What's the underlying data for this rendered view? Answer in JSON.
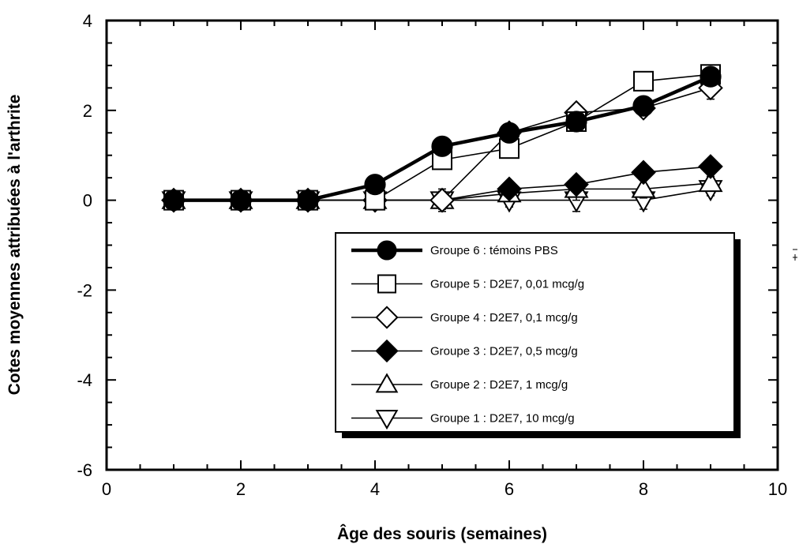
{
  "chart_data": {
    "type": "line",
    "xlabel": "Âge des souris (semaines)",
    "ylabel": "Cotes moyennes attribuées à l'arthrite",
    "xlim": [
      0,
      10
    ],
    "ylim": [
      -6,
      4
    ],
    "xticks": [
      0,
      2,
      4,
      6,
      8,
      10
    ],
    "yticks": [
      -6,
      -4,
      -2,
      0,
      2,
      4
    ],
    "grid": false,
    "legend_position": "bottom-right",
    "x": [
      1,
      2,
      3,
      4,
      5,
      6,
      7,
      8,
      9
    ],
    "series": [
      {
        "name": "Groupe 6 : témoins PBS",
        "marker": "circle-filled",
        "line": "thick",
        "values": [
          0,
          0,
          0,
          0.35,
          1.2,
          1.5,
          1.75,
          2.1,
          2.75
        ],
        "errors": [
          0,
          0,
          0,
          0.05,
          0.1,
          0.1,
          0.1,
          0.2,
          0.15
        ]
      },
      {
        "name": "Groupe 5 : D2E7, 0,01 mcg/g",
        "marker": "square-open",
        "line": "thin",
        "values": [
          0,
          0,
          0,
          0,
          0.9,
          1.15,
          1.75,
          2.65,
          2.8
        ],
        "errors": [
          0,
          0,
          0,
          0,
          0.1,
          0.15,
          0.1,
          0.15,
          0.15
        ]
      },
      {
        "name": "Groupe 4 : D2E7, 0,1 mcg/g",
        "marker": "diamond-open",
        "line": "thin",
        "values": [
          0,
          0,
          0,
          0,
          0,
          1.5,
          1.95,
          2.05,
          2.5
        ],
        "errors": [
          0,
          0,
          0,
          0,
          0,
          0.1,
          0.15,
          0.15,
          0.25
        ]
      },
      {
        "name": "Groupe 3 : D2E7, 0,5 mcg/g",
        "marker": "diamond-filled",
        "line": "thin",
        "values": [
          0,
          0,
          0,
          0,
          0,
          0.25,
          0.35,
          0.62,
          0.75
        ],
        "errors": [
          0,
          0,
          0,
          0,
          0,
          0.15,
          0.15,
          0.1,
          0.15
        ]
      },
      {
        "name": "Groupe 2 : D2E7, 1 mcg/g",
        "marker": "triangle-up-open",
        "line": "thin",
        "values": [
          0,
          0,
          0,
          0,
          0,
          0.15,
          0.25,
          0.25,
          0.38
        ],
        "errors": [
          0,
          0,
          0,
          0,
          0.25,
          0.15,
          0.25,
          0.2,
          0.15
        ]
      },
      {
        "name": "Groupe 1 : D2E7, 10 mcg/g",
        "marker": "triangle-down-open",
        "line": "thin",
        "values": [
          0,
          0,
          0,
          0,
          0,
          0,
          0,
          0,
          0.25
        ],
        "errors": [
          0,
          0,
          0,
          0,
          0.2,
          0.15,
          0.25,
          0.2,
          0.15
        ]
      }
    ]
  }
}
